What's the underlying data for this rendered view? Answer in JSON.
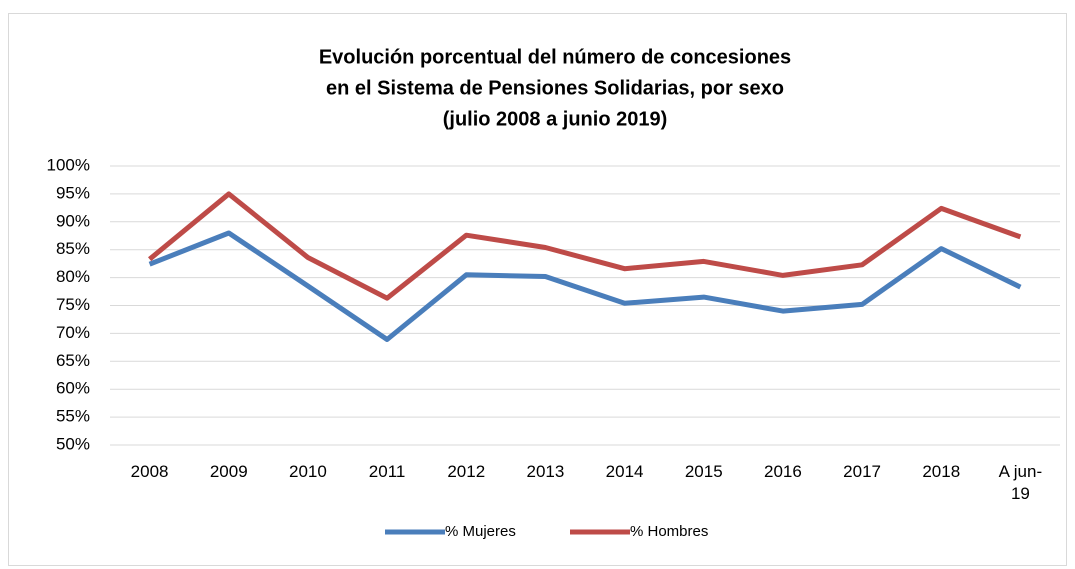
{
  "chart_data": {
    "type": "line",
    "title": [
      "Evolución porcentual del número de concesiones",
      "en el Sistema de Pensiones Solidarias, por sexo",
      "(julio 2008 a junio 2019)"
    ],
    "categories": [
      "2008",
      "2009",
      "2010",
      "2011",
      "2012",
      "2013",
      "2014",
      "2015",
      "2016",
      "2017",
      "2018",
      "A jun-19"
    ],
    "series": [
      {
        "name": "% Mujeres",
        "color": "#4a7ebb",
        "values": [
          82.4,
          88,
          78.5,
          68.9,
          80.5,
          80.2,
          75.4,
          76.5,
          74,
          75.2,
          85.2,
          78.3
        ]
      },
      {
        "name": "% Hombres",
        "color": "#be4b48",
        "values": [
          83.3,
          95,
          83.6,
          76.3,
          87.6,
          85.4,
          81.6,
          82.9,
          80.4,
          82.3,
          92.4,
          87.3
        ]
      }
    ],
    "ylim": [
      50,
      100
    ],
    "yticks": [
      {
        "value": 50,
        "label": "50%"
      },
      {
        "value": 55,
        "label": "55%"
      },
      {
        "value": 60,
        "label": "60%"
      },
      {
        "value": 65,
        "label": "65%"
      },
      {
        "value": 70,
        "label": "70%"
      },
      {
        "value": 75,
        "label": "75%"
      },
      {
        "value": 80,
        "label": "80%"
      },
      {
        "value": 85,
        "label": "85%"
      },
      {
        "value": 90,
        "label": "90%"
      },
      {
        "value": 95,
        "label": "95%"
      },
      {
        "value": 100,
        "label": "100%"
      }
    ],
    "grid": true,
    "legend": "bottom"
  }
}
